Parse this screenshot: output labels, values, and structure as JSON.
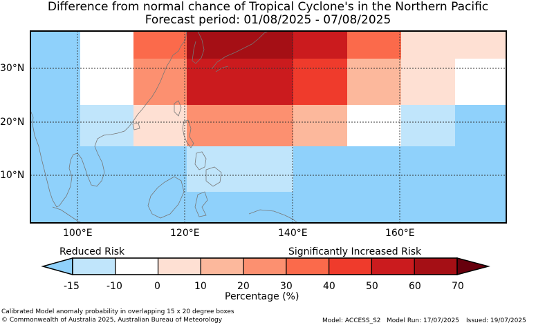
{
  "title": "Difference from normal chance of Tropical Cyclone's in the Northern Pacific",
  "subtitle": "Forecast period: 01/08/2025 - 07/08/2025",
  "map": {
    "lon_range": [
      91,
      178
    ],
    "lat_range": [
      1,
      37
    ],
    "lon_ticks": [
      "100°E",
      "120°E",
      "140°E",
      "160°E"
    ],
    "lat_ticks": [
      "30°N",
      "20°N",
      "10°N"
    ],
    "cell_colors": [
      "#8fd1fb",
      "#c0e5fb",
      "#ffffff",
      "#fee0d3",
      "#fcb89c",
      "#fc9070",
      "#fb6a4b",
      "#ef3b2c",
      "#cb1b1e",
      "#a50f15"
    ],
    "cells_note_colors_index": "cells use index into cell_colors"
  },
  "legend": {
    "left_label": "Reduced Risk",
    "right_label": "Significantly Increased Risk",
    "ticks": [
      "-15",
      "-10",
      "0",
      "10",
      "20",
      "30",
      "40",
      "50",
      "60",
      "70"
    ],
    "axis_label": "Percentage (%)",
    "colors": {
      "under": "#8fd1fb",
      "bins": [
        "#c0e5fb",
        "#ffffff",
        "#fee0d3",
        "#fcb89c",
        "#fc9070",
        "#fb6a4b",
        "#ef3b2c",
        "#cb1b1e",
        "#a50f15"
      ],
      "over": "#67000d"
    }
  },
  "footer": {
    "note": "Calibrated Model anomaly probability in overlapping 15 x 20 degree boxes",
    "copyright": "© Commonwealth of Australia 2025, Australian Bureau of Meteorology",
    "model": "Model: ACCESS_S2",
    "model_run": "Model Run: 17/07/2025",
    "issued": "Issued: 19/07/2025"
  }
}
